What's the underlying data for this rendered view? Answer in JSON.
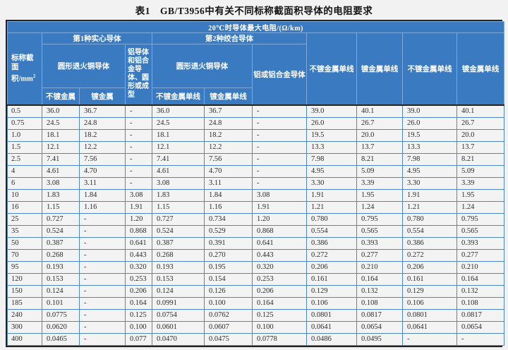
{
  "page": {
    "title": "表1　GB/T3956中有关不同标称截面积导体的电阻要求"
  },
  "colors": {
    "header_blue": "#3a7ac0",
    "grid_blue": "#4e86c6",
    "outer_border": "#232323",
    "background": "#f2f2f2",
    "header_text": "#ffffff",
    "body_text": "#2b2b2b"
  },
  "table": {
    "header": {
      "top_band": "20℃时导体最大电阻/(Ω/km)",
      "size_line1": "标称截",
      "size_line2": "面积/mm",
      "size_sup": "2",
      "group1": "第1种实心导体",
      "group2": "第2种绞合导体",
      "solid_copper": "圆形退火铜导体",
      "solid_copper_plain": "不镀金属",
      "solid_copper_coated": "镀金属",
      "solid_alu": "铝导体和铝合金导体、圆形或成型",
      "stranded_copper": "圆形退火铜导体",
      "stranded_copper_plain": "不镀金属单线",
      "stranded_copper_coated": "镀金属单线",
      "stranded_alu": "铝或铝合金导体",
      "col8": "不镀金属单线",
      "col9": "镀金属单线",
      "col10": "不镀金属单线",
      "col11": "镀金属单线"
    },
    "rows": [
      [
        "0.5",
        "36.0",
        "36.7",
        "-",
        "36.0",
        "36.7",
        "-",
        "39.0",
        "40.1",
        "39.0",
        "40.1"
      ],
      [
        "0.75",
        "24.5",
        "24.8",
        "-",
        "24.5",
        "24.8",
        "-",
        "26.0",
        "26.7",
        "26.0",
        "26.7"
      ],
      [
        "1.0",
        "18.1",
        "18.2",
        "-",
        "18.1",
        "18.2",
        "-",
        "19.5",
        "20.0",
        "19.5",
        "20.0"
      ],
      [
        "1.5",
        "12.1",
        "12.2",
        "-",
        "12.1",
        "12.2",
        "-",
        "13.3",
        "13.7",
        "13.3",
        "13.7"
      ],
      [
        "2.5",
        "7.41",
        "7.56",
        "-",
        "7.41",
        "7.56",
        "-",
        "7.98",
        "8.21",
        "7.98",
        "8.21"
      ],
      [
        "4",
        "4.61",
        "4.70",
        "-",
        "4.61",
        "4.70",
        "-",
        "4.95",
        "5.09",
        "4.95",
        "5.09"
      ],
      [
        "6",
        "3.08",
        "3.11",
        "-",
        "3.08",
        "3.11",
        "-",
        "3.30",
        "3.39",
        "3.30",
        "3.39"
      ],
      [
        "10",
        "1.83",
        "1.84",
        "3.08",
        "1.83",
        "1.84",
        "3.08",
        "1.91",
        "1.95",
        "1.91",
        "1.95"
      ],
      [
        "16",
        "1.15",
        "1.16",
        "1.91",
        "1.15",
        "1.16",
        "1.91",
        "1.21",
        "1.24",
        "1.21",
        "1.24"
      ],
      [
        "25",
        "0.727",
        "-",
        "1.20",
        "0.727",
        "0.734",
        "1.20",
        "0.780",
        "0.795",
        "0.780",
        "0.795"
      ],
      [
        "35",
        "0.524",
        "-",
        "0.868",
        "0.524",
        "0.529",
        "0.868",
        "0.554",
        "0.565",
        "0.554",
        "0.565"
      ],
      [
        "50",
        "0.387",
        "-",
        "0.641",
        "0.387",
        "0.391",
        "0.641",
        "0.386",
        "0.393",
        "0.386",
        "0.393"
      ],
      [
        "70",
        "0.268",
        "-",
        "0.443",
        "0.268",
        "0.270",
        "0.443",
        "0.272",
        "0.277",
        "0.272",
        "0.277"
      ],
      [
        "95",
        "0.193",
        "-",
        "0.320",
        "0.193",
        "0.195",
        "0.320",
        "0.206",
        "0.210",
        "0.206",
        "0.210"
      ],
      [
        "120",
        "0.153",
        "-",
        "0.253",
        "0.153",
        "0.154",
        "0.253",
        "0.161",
        "0.164",
        "0.161",
        "0.164"
      ],
      [
        "150",
        "0.124",
        "-",
        "0.206",
        "0.124",
        "0.126",
        "0.206",
        "0.129",
        "0.132",
        "0.129",
        "0.132"
      ],
      [
        "185",
        "0.101",
        "-",
        "0.164",
        "0.0991",
        "0.100",
        "0.164",
        "0.106",
        "0.108",
        "0.106",
        "0.108"
      ],
      [
        "240",
        "0.0775",
        "-",
        "0.125",
        "0.0754",
        "0.0762",
        "0.125",
        "0.0801",
        "0.0817",
        "0.0801",
        "0.0817"
      ],
      [
        "300",
        "0.0620",
        "-",
        "0.100",
        "0.0601",
        "0.0607",
        "0.100",
        "0.0641",
        "0.0654",
        "0.0641",
        "0.0654"
      ],
      [
        "400",
        "0.0465",
        "-",
        "0.077",
        "0.0470",
        "0.0475",
        "0.0778",
        "0.0486",
        "0.0495",
        "-",
        "-"
      ]
    ]
  }
}
